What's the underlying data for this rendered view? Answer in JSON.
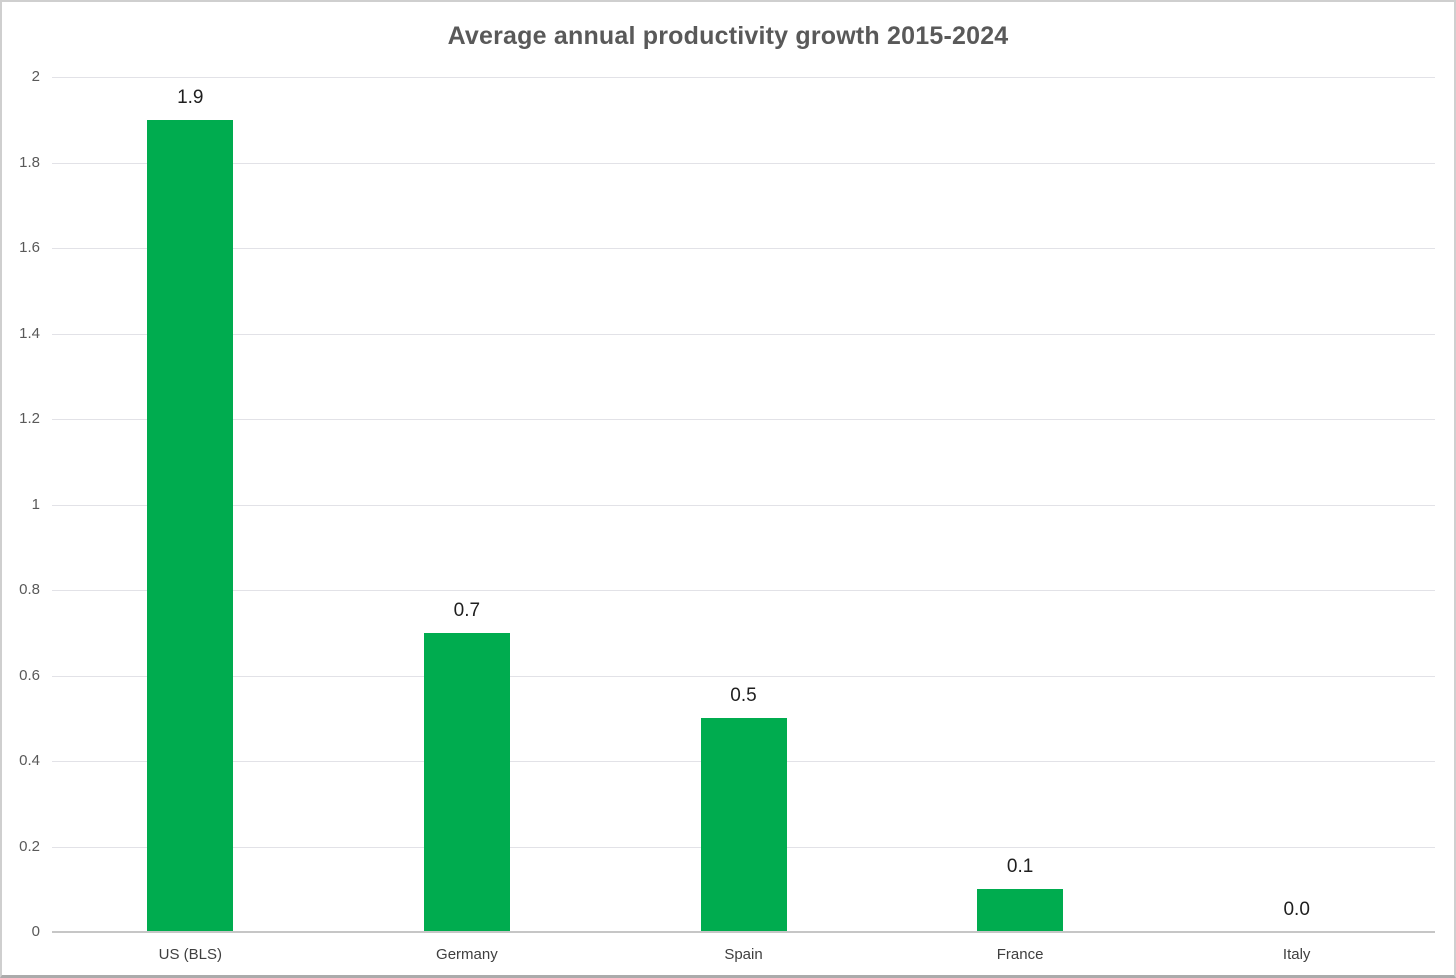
{
  "chart_data": {
    "type": "bar",
    "title": "Average annual productivity growth 2015-2024",
    "categories": [
      "US (BLS)",
      "Germany",
      "Spain",
      "France",
      "Italy"
    ],
    "values": [
      1.9,
      0.7,
      0.5,
      0.1,
      0.0
    ],
    "data_labels": [
      "1.9",
      "0.7",
      "0.5",
      "0.1",
      "0.0"
    ],
    "xlabel": "",
    "ylabel": "",
    "ylim": [
      0,
      2
    ],
    "ytick_step": 0.2,
    "ytick_labels": [
      "0",
      "0.2",
      "0.4",
      "0.6",
      "0.8",
      "1",
      "1.2",
      "1.4",
      "1.6",
      "1.8",
      "2"
    ],
    "grid": true,
    "legend": false,
    "bar_color": "#00AC4F",
    "gridline_color": "#e2e2e7",
    "axis_line_color": "#c6c6c6",
    "title_color": "#595959",
    "tick_label_color": "#595959",
    "data_label_color": "#1f1f1f"
  }
}
